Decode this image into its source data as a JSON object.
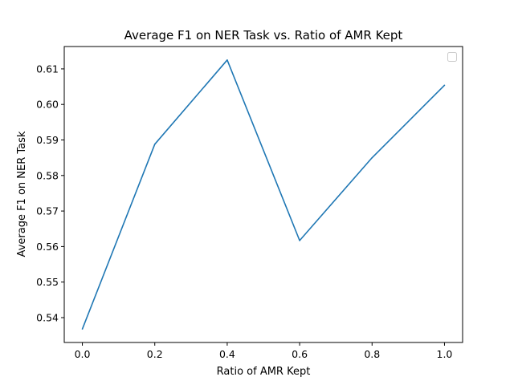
{
  "chart_data": {
    "type": "line",
    "title": "Average F1 on NER Task vs. Ratio of AMR Kept",
    "xlabel": "Ratio of AMR Kept",
    "ylabel": "Average F1 on NER Task",
    "x": [
      0.0,
      0.2,
      0.4,
      0.6,
      0.8,
      1.0
    ],
    "series": [
      {
        "values": [
          0.5368,
          0.5888,
          0.6125,
          0.5617,
          0.585,
          0.6054
        ]
      }
    ],
    "xlim": [
      -0.05,
      1.05
    ],
    "ylim": [
      0.533,
      0.6163
    ],
    "xticks": [
      "0.0",
      "0.2",
      "0.4",
      "0.6",
      "0.8",
      "1.0"
    ],
    "yticks": [
      "0.54",
      "0.55",
      "0.56",
      "0.57",
      "0.58",
      "0.59",
      "0.60",
      "0.61"
    ],
    "legend": "top-right (empty)",
    "grid": false,
    "line_color": "#1f77b4"
  }
}
